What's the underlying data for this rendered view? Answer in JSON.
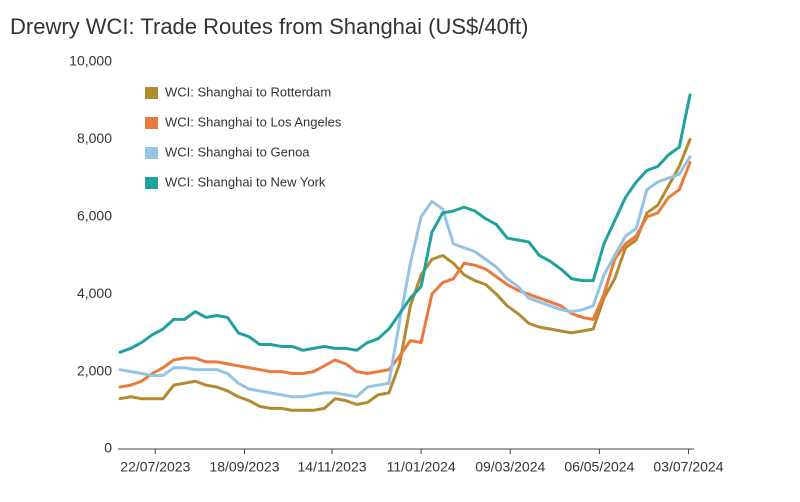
{
  "chart_data": {
    "type": "line",
    "title": "Drewry WCI: Trade Routes from Shanghai (US$/40ft)",
    "x": [
      "29/06/2023",
      "06/07/2023",
      "13/07/2023",
      "20/07/2023",
      "27/07/2023",
      "03/08/2023",
      "10/08/2023",
      "17/08/2023",
      "24/08/2023",
      "31/08/2023",
      "07/09/2023",
      "14/09/2023",
      "21/09/2023",
      "28/09/2023",
      "05/10/2023",
      "12/10/2023",
      "19/10/2023",
      "26/10/2023",
      "02/11/2023",
      "09/11/2023",
      "16/11/2023",
      "23/11/2023",
      "30/11/2023",
      "07/12/2023",
      "14/12/2023",
      "21/12/2023",
      "28/12/2023",
      "04/01/2024",
      "11/01/2024",
      "18/01/2024",
      "25/01/2024",
      "01/02/2024",
      "08/02/2024",
      "15/02/2024",
      "22/02/2024",
      "29/02/2024",
      "07/03/2024",
      "14/03/2024",
      "21/03/2024",
      "28/03/2024",
      "04/04/2024",
      "11/04/2024",
      "18/04/2024",
      "25/04/2024",
      "02/05/2024",
      "09/05/2024",
      "16/05/2024",
      "23/05/2024",
      "30/05/2024",
      "06/06/2024",
      "13/06/2024",
      "20/06/2024",
      "27/06/2024",
      "04/07/2024"
    ],
    "xlim": [
      "29/06/2023",
      "04/07/2024"
    ],
    "xticks": [
      "22/07/2023",
      "18/09/2023",
      "14/11/2023",
      "11/01/2024",
      "09/03/2024",
      "06/05/2024",
      "03/07/2024"
    ],
    "ylim": [
      0,
      10000
    ],
    "yticks": [
      0,
      {
        "value": 2000,
        "label": "2,000"
      },
      {
        "value": 4000,
        "label": "4,000"
      },
      {
        "value": 6000,
        "label": "6,000"
      },
      {
        "value": 8000,
        "label": "8,000"
      },
      {
        "value": 10000,
        "label": "10,000"
      }
    ],
    "legend": "top-left",
    "series": [
      {
        "name": "WCI: Shanghai to Rotterdam",
        "color": "#b38b2e",
        "values": [
          1300,
          1350,
          1300,
          1300,
          1300,
          1650,
          1700,
          1750,
          1650,
          1600,
          1500,
          1350,
          1250,
          1100,
          1050,
          1050,
          1000,
          1000,
          1000,
          1050,
          1300,
          1250,
          1150,
          1200,
          1400,
          1450,
          2200,
          3700,
          4500,
          4900,
          5000,
          4800,
          4500,
          4350,
          4250,
          4000,
          3700,
          3500,
          3250,
          3150,
          3100,
          3050,
          3000,
          3050,
          3100,
          3900,
          4400,
          5200,
          5400,
          6100,
          6300,
          6800,
          7300,
          8000
        ]
      },
      {
        "name": "WCI: Shanghai to Los Angeles",
        "color": "#ea7a3b",
        "values": [
          1600,
          1650,
          1750,
          1950,
          2100,
          2300,
          2350,
          2350,
          2250,
          2250,
          2200,
          2150,
          2100,
          2050,
          2000,
          2000,
          1950,
          1950,
          2000,
          2150,
          2300,
          2200,
          2000,
          1950,
          2000,
          2050,
          2400,
          2800,
          2750,
          4000,
          4300,
          4400,
          4800,
          4750,
          4650,
          4450,
          4250,
          4100,
          4000,
          3900,
          3800,
          3700,
          3500,
          3400,
          3350,
          4000,
          4900,
          5300,
          5500,
          6000,
          6100,
          6500,
          6700,
          7400
        ]
      },
      {
        "name": "WCI: Shanghai to Genoa",
        "color": "#93c3e5",
        "values": [
          2050,
          2000,
          1950,
          1900,
          1900,
          2100,
          2100,
          2050,
          2050,
          2050,
          1950,
          1700,
          1550,
          1500,
          1450,
          1400,
          1350,
          1350,
          1400,
          1450,
          1450,
          1400,
          1350,
          1600,
          1650,
          1700,
          3300,
          4800,
          6000,
          6400,
          6200,
          5300,
          5200,
          5100,
          4900,
          4700,
          4400,
          4200,
          3900,
          3800,
          3700,
          3600,
          3550,
          3600,
          3700,
          4500,
          5000,
          5500,
          5700,
          6700,
          6900,
          7000,
          7100,
          7550
        ]
      },
      {
        "name": "WCI: Shanghai to New York",
        "color": "#1fa29d",
        "values": [
          2500,
          2600,
          2750,
          2950,
          3100,
          3350,
          3350,
          3550,
          3400,
          3450,
          3400,
          3000,
          2900,
          2700,
          2700,
          2650,
          2650,
          2550,
          2600,
          2650,
          2600,
          2600,
          2550,
          2750,
          2850,
          3100,
          3500,
          3900,
          4200,
          5600,
          6100,
          6150,
          6250,
          6150,
          5950,
          5800,
          5450,
          5400,
          5350,
          5000,
          4850,
          4650,
          4400,
          4350,
          4350,
          5300,
          5900,
          6500,
          6900,
          7200,
          7300,
          7600,
          7800,
          9150
        ]
      }
    ]
  }
}
